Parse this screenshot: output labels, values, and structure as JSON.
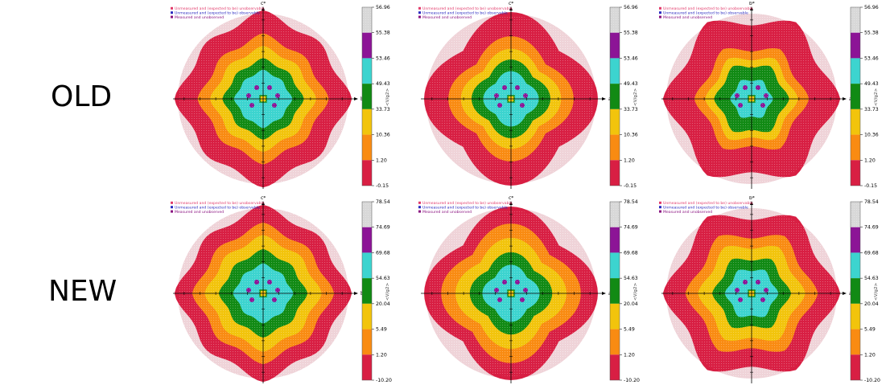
{
  "rows": [
    {
      "label": "OLD"
    },
    {
      "label": "NEW"
    }
  ],
  "colors": {
    "band_red": "#d81f43",
    "band_orange": "#f98b12",
    "band_yellow": "#f2c40c",
    "band_green": "#118a14",
    "band_cyan": "#3cd4cf",
    "band_purple": "#8c1496",
    "band_gray": "#d8d8d8",
    "outer_unobserved": "#efd3d8",
    "legend_pink": "#e23a6a",
    "legend_blue": "#2a2ac0",
    "legend_purple": "#8a1280"
  },
  "chart_data": [
    {
      "type": "heatmap",
      "row": "OLD",
      "column": 1,
      "xlabel": "b*",
      "ylabel": "c*",
      "colorbar_label": "<V/g2>",
      "legend": [
        "Unmeasured and (expected to be) unobservable",
        "Unmeasured and (expected to be) observable",
        "Measured and unobserved"
      ],
      "colorbar_ticks": [
        "56.96",
        "55.38",
        "53.46",
        "49.43",
        "33.73",
        "10.36",
        "1.20",
        "-0.15"
      ],
      "shape": "cross",
      "bands": [
        1.0,
        0.74,
        0.6,
        0.46,
        0.33,
        0.04
      ]
    },
    {
      "type": "heatmap",
      "row": "OLD",
      "column": 2,
      "xlabel": "a*",
      "ylabel": "c*",
      "colorbar_label": "<V/g2>",
      "legend": [
        "Unmeasured and (expected to be) unobservable",
        "Unmeasured and (expected to be) observable",
        "Measured and unobserved"
      ],
      "colorbar_ticks": [
        "56.96",
        "55.38",
        "53.46",
        "49.43",
        "33.73",
        "10.36",
        "1.20",
        "-0.15"
      ],
      "shape": "diamond",
      "bands": [
        0.97,
        0.7,
        0.56,
        0.44,
        0.31,
        0.04
      ]
    },
    {
      "type": "heatmap",
      "row": "OLD",
      "column": 3,
      "xlabel": "a*",
      "ylabel": "b*",
      "colorbar_label": "<V/g2>",
      "legend": [
        "Unmeasured and (expected to be) unobservable",
        "Unmeasured and (expected to be) observable",
        "Measured and unobserved"
      ],
      "colorbar_ticks": [
        "56.96",
        "55.38",
        "53.46",
        "49.43",
        "33.73",
        "10.36",
        "1.20",
        "-0.15"
      ],
      "shape": "hex",
      "bands": [
        0.99,
        0.64,
        0.52,
        0.42,
        0.24,
        0.04
      ]
    },
    {
      "type": "heatmap",
      "row": "NEW",
      "column": 1,
      "xlabel": "b*",
      "ylabel": "c*",
      "colorbar_label": "<V/g2>",
      "legend": [
        "Unmeasured and (expected to be) unobservable",
        "Unmeasured and (expected to be) observable",
        "Measured and unobserved"
      ],
      "colorbar_ticks": [
        "78.54",
        "74.69",
        "69.68",
        "54.63",
        "20.04",
        "5.49",
        "1.20",
        "-10.20"
      ],
      "shape": "cross",
      "bands": [
        1.0,
        0.8,
        0.66,
        0.5,
        0.34,
        0.03
      ]
    },
    {
      "type": "heatmap",
      "row": "NEW",
      "column": 2,
      "xlabel": "a*",
      "ylabel": "c*",
      "colorbar_label": "<V/g2>",
      "legend": [
        "Unmeasured and (expected to be) unobservable",
        "Unmeasured and (expected to be) observable",
        "Measured and unobserved"
      ],
      "colorbar_ticks": [
        "78.54",
        "74.69",
        "69.68",
        "54.63",
        "20.04",
        "5.49",
        "1.20",
        "-10.20"
      ],
      "shape": "diamond",
      "bands": [
        0.97,
        0.78,
        0.62,
        0.46,
        0.32,
        0.03
      ]
    },
    {
      "type": "heatmap",
      "row": "NEW",
      "column": 3,
      "xlabel": "a*",
      "ylabel": "b*",
      "colorbar_label": "<V/g2>",
      "legend": [
        "Unmeasured and (expected to be) unobservable",
        "Unmeasured and (expected to be) observable",
        "Measured and unobserved"
      ],
      "colorbar_ticks": [
        "78.54",
        "74.69",
        "69.68",
        "54.63",
        "20.04",
        "5.49",
        "1.20",
        "-10.20"
      ],
      "shape": "hex",
      "bands": [
        0.99,
        0.74,
        0.6,
        0.44,
        0.3,
        0.03
      ]
    }
  ]
}
